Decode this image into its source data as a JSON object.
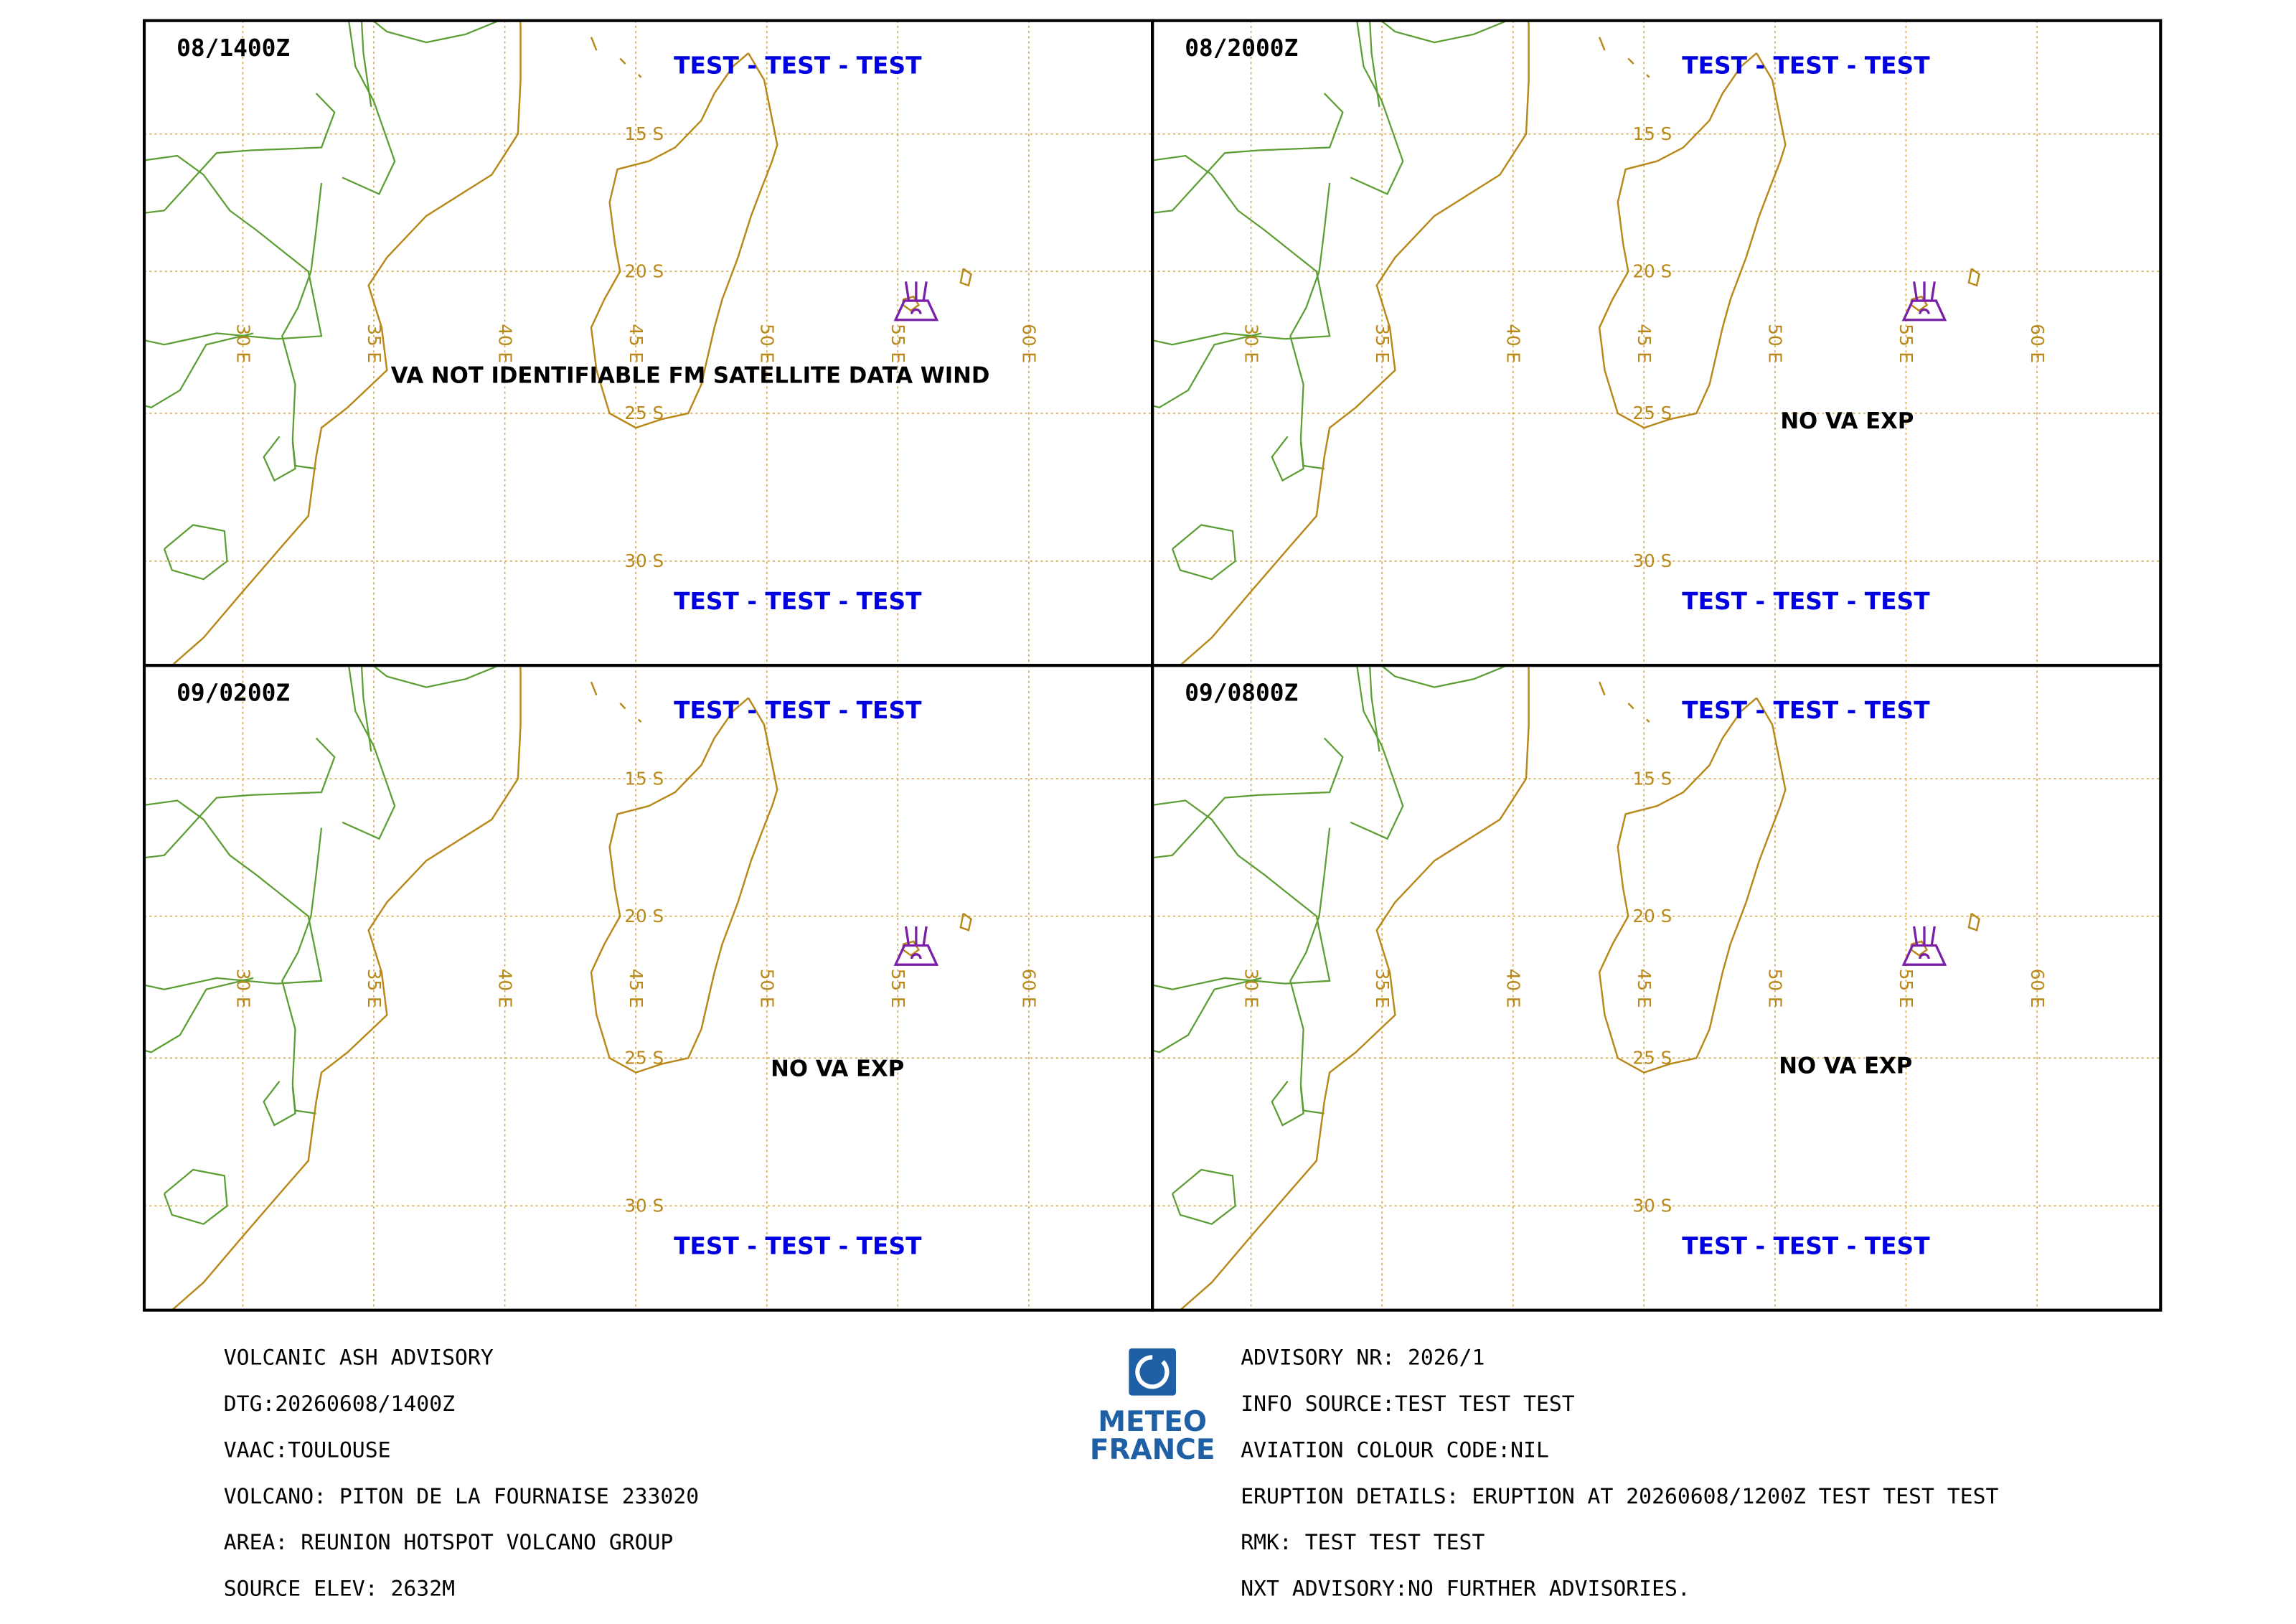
{
  "panels": [
    {
      "time": "08/1400Z",
      "header": "TEST - TEST - TEST",
      "footer": "TEST - TEST - TEST",
      "message": "VA NOT IDENTIFIABLE FM SATELLITE DATA WIND"
    },
    {
      "time": "08/2000Z",
      "header": "TEST - TEST - TEST",
      "footer": "TEST - TEST - TEST",
      "message": "NO VA EXP"
    },
    {
      "time": "09/0200Z",
      "header": "TEST - TEST - TEST",
      "footer": "TEST - TEST - TEST",
      "message": "NO VA EXP"
    },
    {
      "time": "09/0800Z",
      "header": "TEST - TEST - TEST",
      "footer": "TEST - TEST - TEST",
      "message": "NO VA EXP"
    }
  ],
  "grid": {
    "lat_labels": [
      "15 S",
      "20 S",
      "25 S",
      "30 S"
    ],
    "lon_labels": [
      "30 E",
      "35 E",
      "40 E",
      "45 E",
      "50 E",
      "55 E",
      "60 E"
    ]
  },
  "advisory": {
    "left": [
      "VOLCANIC ASH ADVISORY",
      "DTG:20260608/1400Z",
      "VAAC:TOULOUSE",
      "VOLCANO: PITON DE LA FOURNAISE 233020",
      "AREA: REUNION HOTSPOT VOLCANO GROUP",
      "SOURCE ELEV: 2632M"
    ],
    "right": [
      "ADVISORY NR: 2026/1",
      "INFO SOURCE:TEST TEST TEST",
      "AVIATION COLOUR CODE:NIL",
      "ERUPTION DETAILS: ERUPTION AT 20260608/1200Z TEST TEST TEST",
      "RMK: TEST TEST TEST",
      "NXT ADVISORY:NO FURTHER ADVISORIES."
    ]
  },
  "logo": {
    "line1": "METEO",
    "line2": "FRANCE"
  }
}
